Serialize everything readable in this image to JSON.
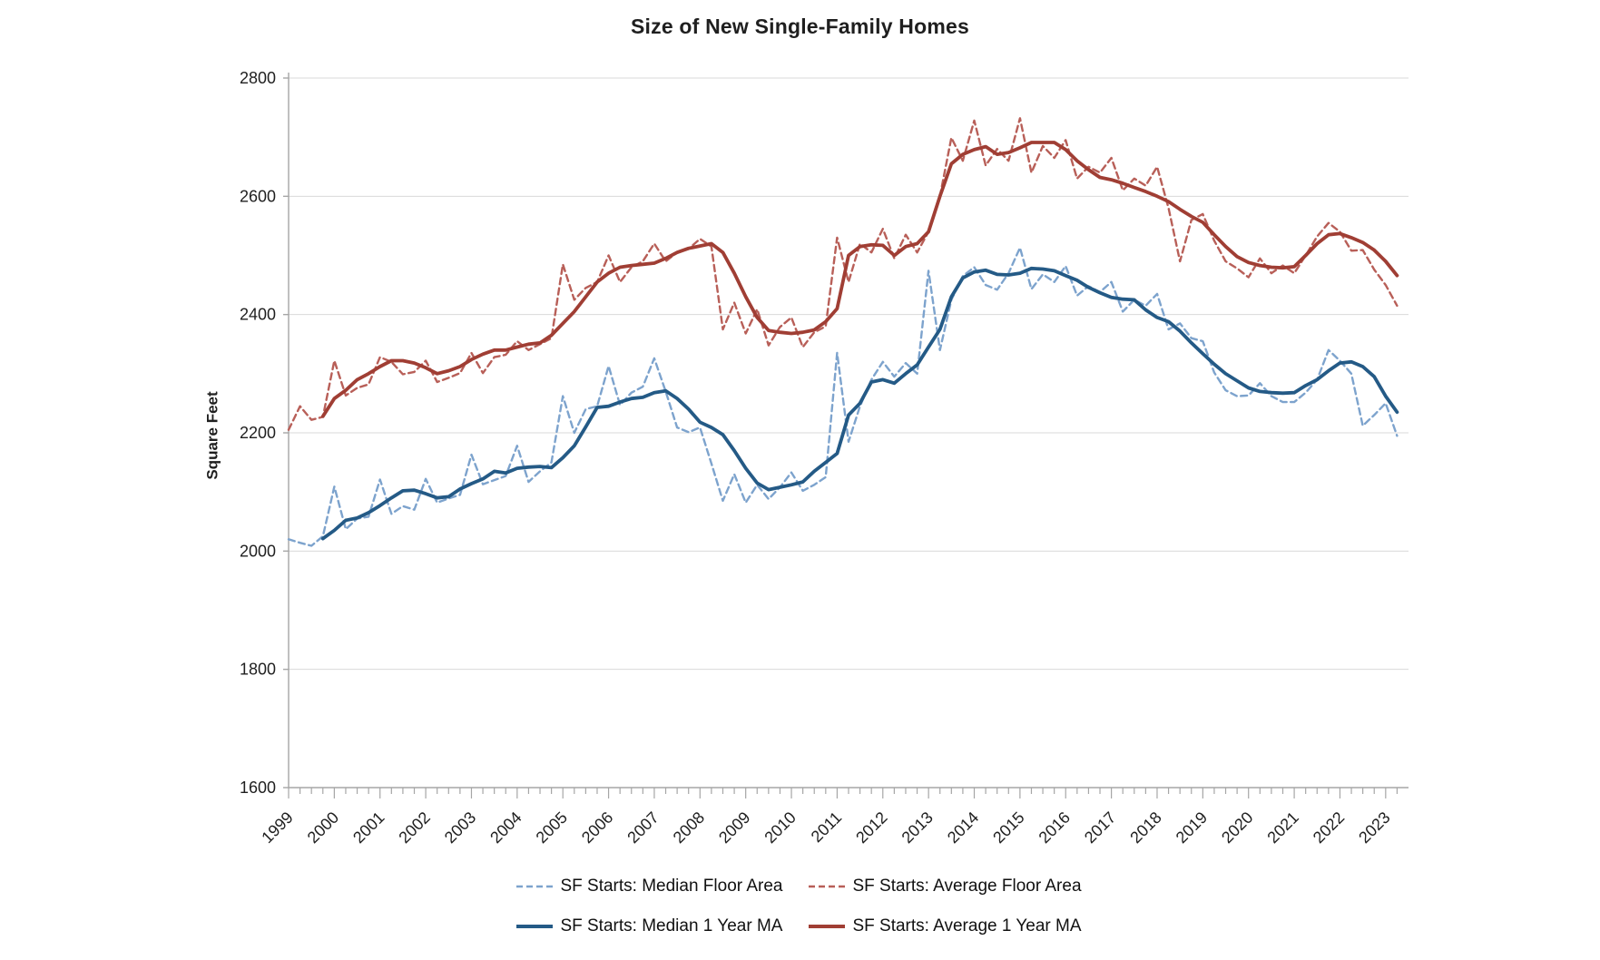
{
  "title": "Size of New Single-Family Homes",
  "chart_data": {
    "type": "line",
    "title": "Size of New Single-Family Homes",
    "xlabel": "",
    "ylabel": "Square Feet",
    "ylim": [
      1600,
      2800
    ],
    "yticks": [
      1600,
      1800,
      2000,
      2200,
      2400,
      2600,
      2800
    ],
    "x_start": 1999,
    "x_step": 0.25,
    "x_axis_end": 2023.5,
    "xtick_years": [
      1999,
      2000,
      2001,
      2002,
      2003,
      2004,
      2005,
      2006,
      2007,
      2008,
      2009,
      2010,
      2011,
      2012,
      2013,
      2014,
      2015,
      2016,
      2017,
      2018,
      2019,
      2020,
      2021,
      2022,
      2023
    ],
    "grid": "horizontal",
    "legend_position": "bottom",
    "axis_color": "#a6a6a6",
    "grid_color": "#d9d9d9",
    "series": [
      {
        "name": "SF Starts: Median Floor Area",
        "style": "dashed",
        "color": "#7da3cd",
        "values": [
          2020,
          2014,
          2009,
          2025,
          2109,
          2037,
          2055,
          2058,
          2121,
          2063,
          2076,
          2070,
          2122,
          2082,
          2089,
          2095,
          2163,
          2113,
          2120,
          2127,
          2178,
          2117,
          2135,
          2150,
          2262,
          2200,
          2240,
          2245,
          2313,
          2247,
          2268,
          2278,
          2326,
          2270,
          2209,
          2201,
          2209,
          2148,
          2085,
          2130,
          2082,
          2112,
          2088,
          2108,
          2133,
          2102,
          2112,
          2125,
          2335,
          2185,
          2245,
          2290,
          2320,
          2295,
          2318,
          2300,
          2474,
          2340,
          2425,
          2465,
          2480,
          2450,
          2442,
          2470,
          2513,
          2443,
          2468,
          2455,
          2482,
          2432,
          2448,
          2438,
          2455,
          2405,
          2425,
          2415,
          2435,
          2375,
          2385,
          2360,
          2355,
          2302,
          2272,
          2262,
          2263,
          2284,
          2262,
          2252,
          2252,
          2268,
          2290,
          2340,
          2322,
          2300,
          2212,
          2230,
          2250,
          2195
        ]
      },
      {
        "name": "SF Starts: Average Floor Area",
        "style": "dashed",
        "color": "#b85f58",
        "values": [
          2205,
          2245,
          2222,
          2227,
          2322,
          2263,
          2276,
          2282,
          2328,
          2320,
          2299,
          2303,
          2322,
          2286,
          2293,
          2301,
          2335,
          2301,
          2328,
          2332,
          2355,
          2340,
          2350,
          2360,
          2485,
          2425,
          2445,
          2455,
          2500,
          2455,
          2480,
          2490,
          2520,
          2490,
          2505,
          2511,
          2528,
          2515,
          2375,
          2420,
          2368,
          2409,
          2348,
          2379,
          2395,
          2345,
          2370,
          2380,
          2530,
          2455,
          2520,
          2505,
          2545,
          2495,
          2535,
          2505,
          2540,
          2600,
          2699,
          2660,
          2728,
          2652,
          2680,
          2660,
          2732,
          2640,
          2685,
          2665,
          2695,
          2630,
          2650,
          2640,
          2665,
          2610,
          2630,
          2618,
          2650,
          2580,
          2490,
          2560,
          2570,
          2525,
          2490,
          2478,
          2463,
          2495,
          2470,
          2483,
          2470,
          2500,
          2532,
          2555,
          2540,
          2508,
          2509,
          2476,
          2450,
          2415
        ]
      },
      {
        "name": "SF Starts: Median 1 Year MA",
        "style": "solid",
        "color": "#245a86",
        "values": [
          null,
          null,
          null,
          2021,
          2035,
          2052,
          2056,
          2065,
          2077,
          2090,
          2102,
          2103,
          2097,
          2090,
          2092,
          2105,
          2114,
          2122,
          2135,
          2132,
          2140,
          2142,
          2143,
          2141,
          2158,
          2178,
          2210,
          2243,
          2245,
          2252,
          2258,
          2260,
          2268,
          2271,
          2258,
          2240,
          2218,
          2209,
          2197,
          2170,
          2140,
          2115,
          2104,
          2108,
          2112,
          2117,
          2135,
          2150,
          2165,
          2230,
          2250,
          2286,
          2290,
          2284,
          2300,
          2315,
          2345,
          2375,
          2430,
          2462,
          2472,
          2475,
          2468,
          2467,
          2470,
          2478,
          2477,
          2474,
          2466,
          2458,
          2446,
          2437,
          2429,
          2426,
          2425,
          2408,
          2395,
          2388,
          2372,
          2352,
          2334,
          2316,
          2300,
          2288,
          2276,
          2270,
          2268,
          2267,
          2268,
          2280,
          2290,
          2305,
          2318,
          2320,
          2312,
          2295,
          2262,
          2235
        ]
      },
      {
        "name": "SF Starts: Average 1 Year MA",
        "style": "solid",
        "color": "#a03e34",
        "values": [
          null,
          null,
          null,
          2228,
          2258,
          2272,
          2290,
          2300,
          2312,
          2322,
          2322,
          2318,
          2310,
          2300,
          2305,
          2312,
          2324,
          2333,
          2340,
          2340,
          2345,
          2350,
          2352,
          2365,
          2385,
          2405,
          2430,
          2455,
          2470,
          2480,
          2483,
          2485,
          2487,
          2495,
          2505,
          2512,
          2516,
          2520,
          2505,
          2470,
          2430,
          2395,
          2373,
          2370,
          2368,
          2370,
          2374,
          2388,
          2410,
          2500,
          2515,
          2518,
          2517,
          2500,
          2515,
          2520,
          2540,
          2600,
          2655,
          2671,
          2679,
          2684,
          2671,
          2674,
          2682,
          2691,
          2691,
          2691,
          2679,
          2660,
          2645,
          2632,
          2628,
          2622,
          2615,
          2608,
          2600,
          2591,
          2578,
          2566,
          2556,
          2535,
          2515,
          2498,
          2488,
          2483,
          2480,
          2479,
          2481,
          2500,
          2520,
          2535,
          2537,
          2530,
          2522,
          2509,
          2490,
          2466
        ]
      }
    ]
  }
}
